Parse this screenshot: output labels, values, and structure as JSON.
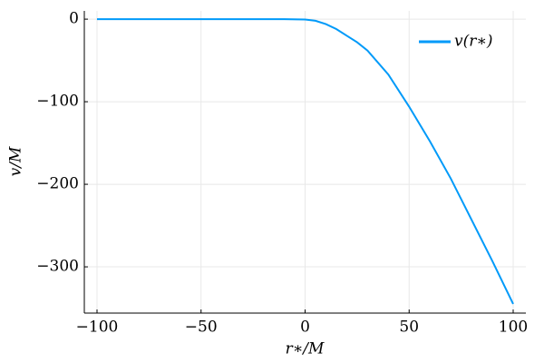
{
  "chart_data": {
    "type": "line",
    "xlabel": "r∗/M",
    "ylabel": "v/M",
    "x": [
      -100,
      -75,
      -50,
      -25,
      -10,
      0,
      5,
      10,
      15,
      20,
      25,
      30,
      40,
      50,
      60,
      70,
      80,
      90,
      100
    ],
    "series": [
      {
        "name": "v(r∗)",
        "color": "#009af9",
        "values": [
          0,
          0,
          0,
          0,
          0,
          -0.5,
          -2,
          -6,
          -12,
          -20,
          -28,
          -38,
          -67,
          -106,
          -148,
          -193,
          -243,
          -293,
          -345
        ]
      }
    ],
    "xlim": [
      -106.1,
      106.1
    ],
    "ylim": [
      -356,
      10
    ],
    "xticks": [
      {
        "value": -100,
        "label": "−100"
      },
      {
        "value": -50,
        "label": "−50"
      },
      0,
      50,
      100
    ],
    "yticks": [
      0,
      {
        "value": -100,
        "label": "−100"
      },
      {
        "value": -200,
        "label": "−200"
      },
      {
        "value": -300,
        "label": "−300"
      }
    ],
    "grid": true,
    "legend": "top-right"
  }
}
